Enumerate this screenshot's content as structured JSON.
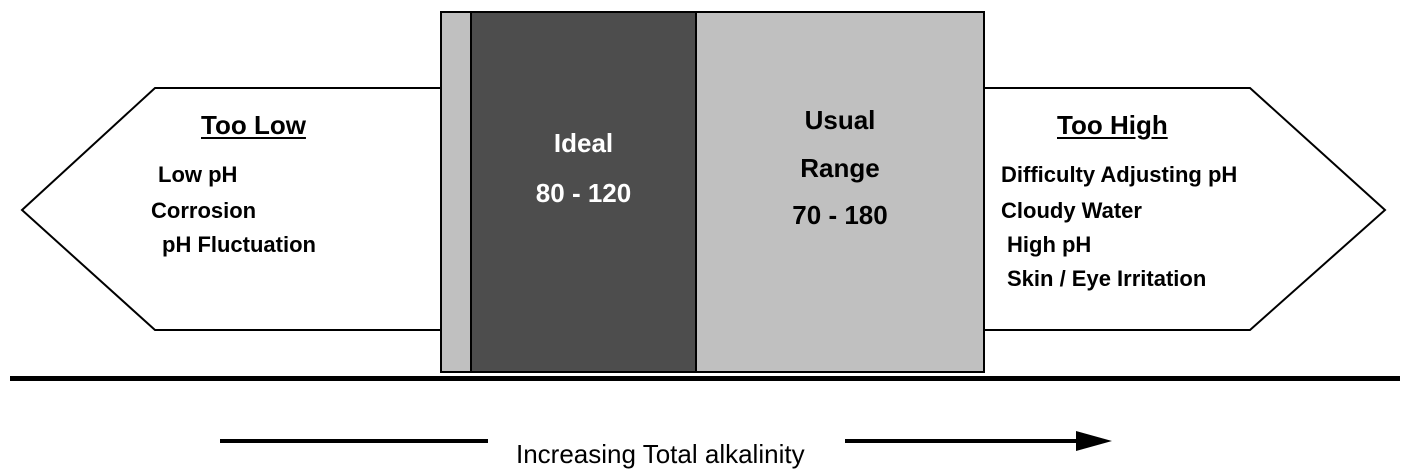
{
  "too_low": {
    "heading": "Too Low",
    "effects": [
      "Low pH",
      "Corrosion",
      "pH Fluctuation"
    ]
  },
  "ideal": {
    "label": "Ideal",
    "range": "80 - 120"
  },
  "usual": {
    "label_line1": "Usual",
    "label_line2": "Range",
    "range": "70 - 180"
  },
  "too_high": {
    "heading": "Too High",
    "effects": [
      "Difficulty Adjusting pH",
      "Cloudy Water",
      "High pH",
      "Skin / Eye Irritation"
    ]
  },
  "axis": {
    "caption": "Increasing Total alkalinity"
  },
  "colors": {
    "ideal_fill": "#4d4d4d",
    "usual_fill": "#c0c0c0",
    "arrow_fill": "#ffffff",
    "stroke": "#000000",
    "ideal_text": "#ffffff"
  }
}
